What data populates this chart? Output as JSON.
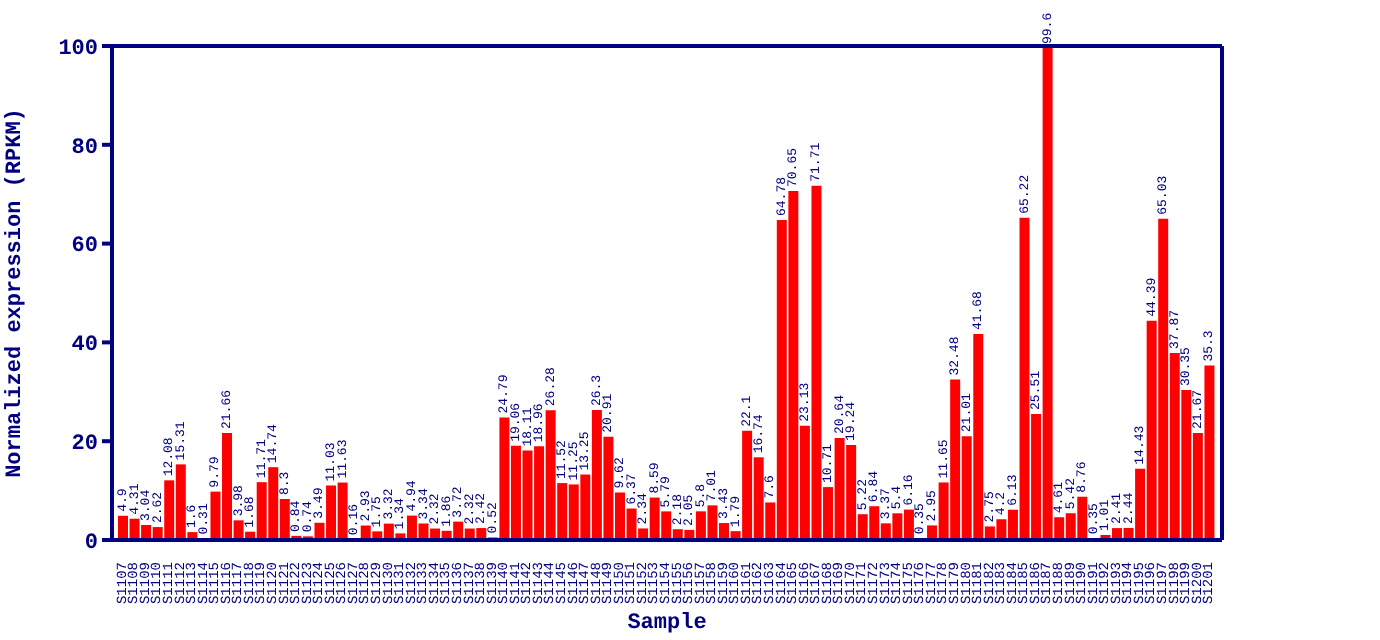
{
  "chart_data": {
    "type": "bar",
    "xlabel": "Sample",
    "ylabel": "Normalized expression (RPKM)",
    "categories": [
      "S1107",
      "S1108",
      "S1109",
      "S1110",
      "S1111",
      "S1112",
      "S1113",
      "S1114",
      "S1115",
      "S1116",
      "S1117",
      "S1118",
      "S1119",
      "S1120",
      "S1121",
      "S1122",
      "S1123",
      "S1124",
      "S1125",
      "S1126",
      "S1127",
      "S1128",
      "S1129",
      "S1130",
      "S1131",
      "S1132",
      "S1133",
      "S1134",
      "S1135",
      "S1136",
      "S1137",
      "S1138",
      "S1139",
      "S1140",
      "S1141",
      "S1142",
      "S1143",
      "S1144",
      "S1145",
      "S1146",
      "S1147",
      "S1148",
      "S1149",
      "S1150",
      "S1151",
      "S1152",
      "S1153",
      "S1154",
      "S1155",
      "S1156",
      "S1157",
      "S1158",
      "S1159",
      "S1160",
      "S1161",
      "S1162",
      "S1163",
      "S1164",
      "S1165",
      "S1166",
      "S1167",
      "S1168",
      "S1169",
      "S1170",
      "S1171",
      "S1172",
      "S1173",
      "S1174",
      "S1175",
      "S1176",
      "S1177",
      "S1178",
      "S1179",
      "S1180",
      "S1181",
      "S1182",
      "S1183",
      "S1184",
      "S1185",
      "S1186",
      "S1187",
      "S1188",
      "S1189",
      "S1190",
      "S1191",
      "S1192",
      "S1193",
      "S1194",
      "S1195",
      "S1196",
      "S1197",
      "S1198",
      "S1199",
      "S1200",
      "S1201"
    ],
    "values": [
      4.9,
      4.31,
      3.04,
      2.62,
      12.08,
      15.31,
      1.6,
      0.31,
      9.79,
      21.66,
      3.98,
      1.68,
      11.71,
      14.74,
      8.3,
      0.84,
      0.74,
      3.49,
      11.03,
      11.63,
      0.16,
      2.93,
      1.75,
      3.32,
      1.34,
      4.94,
      3.34,
      2.32,
      1.86,
      3.72,
      2.32,
      2.42,
      0.52,
      24.79,
      19.06,
      18.11,
      18.96,
      26.28,
      11.52,
      11.25,
      13.25,
      26.3,
      20.91,
      9.62,
      6.37,
      2.34,
      8.59,
      5.79,
      2.18,
      2.05,
      5.8,
      7.01,
      3.43,
      1.79,
      22.1,
      16.74,
      7.6,
      64.78,
      70.65,
      23.13,
      71.71,
      10.71,
      20.64,
      19.24,
      5.22,
      6.84,
      3.37,
      5.4,
      6.16,
      0.35,
      2.95,
      11.65,
      32.48,
      21.01,
      41.68,
      2.75,
      4.2,
      6.13,
      65.22,
      25.51,
      99.6,
      4.61,
      5.42,
      8.76,
      0.35,
      1.01,
      2.41,
      2.44,
      14.43,
      44.39,
      65.03,
      37.87,
      30.35,
      21.67,
      35.3
    ],
    "color": "#ff0000",
    "ylim": [
      0,
      100
    ],
    "yticks": [
      0,
      20,
      40,
      60,
      80,
      100
    ],
    "data_labels": true
  }
}
